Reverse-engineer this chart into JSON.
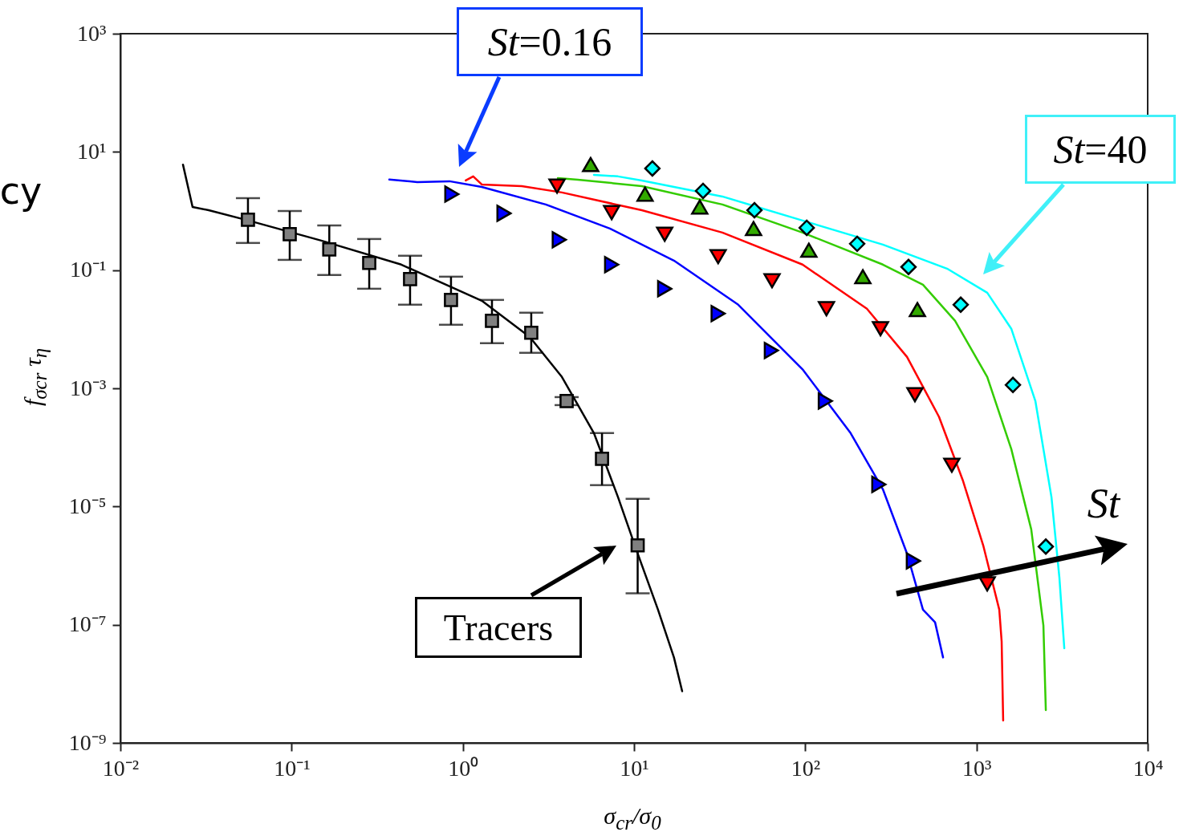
{
  "chart_data": {
    "type": "line",
    "xlabel": "σ$_{cr}$/σ$_{0}$",
    "ylabel": "f$_{σcr}$ τ$_{η}$",
    "log": "xy",
    "xlim": [
      0.01,
      10000
    ],
    "ylim": [
      1e-09,
      1000
    ],
    "xticks": [
      {
        "value": 0.01,
        "label": "10⁻²"
      },
      {
        "value": 0.1,
        "label": "10⁻¹"
      },
      {
        "value": 1,
        "label": "10⁰"
      },
      {
        "value": 10,
        "label": "10¹"
      },
      {
        "value": 100,
        "label": "10²"
      },
      {
        "value": 1000,
        "label": "10³"
      },
      {
        "value": 10000,
        "label": "10⁴"
      }
    ],
    "yticks": [
      {
        "value": 1e-09,
        "label": "10⁻⁹"
      },
      {
        "value": 1e-07,
        "label": "10⁻⁷"
      },
      {
        "value": 1e-05,
        "label": "10⁻⁵"
      },
      {
        "value": 0.001,
        "label": "10⁻³"
      },
      {
        "value": 0.1,
        "label": "10⁻¹"
      },
      {
        "value": 10,
        "label": "10¹"
      },
      {
        "value": 1000,
        "label": "10³"
      }
    ],
    "series": [
      {
        "type": "line",
        "color": "#000000",
        "x": [
          0.0232,
          0.0264,
          0.0328,
          0.056,
          0.149,
          0.437,
          1.29,
          2.46,
          3.79,
          5.83,
          8.06,
          10.5,
          13.8,
          17.1,
          19.1
        ],
        "values": [
          6.1,
          1.17,
          1.03,
          0.69,
          0.316,
          0.124,
          0.0303,
          0.0074,
          0.00156,
          0.000175,
          1.44e-05,
          1.6e-06,
          1.8e-07,
          2.8e-08,
          7.5e-09
        ]
      },
      {
        "type": "line",
        "color": "#0000ff",
        "x": [
          0.372,
          0.542,
          0.836,
          1.29,
          3.05,
          7.23,
          17.1,
          40.6,
          96.4,
          184,
          284,
          393,
          487,
          573,
          638
        ],
        "values": [
          3.4,
          3.09,
          3.19,
          2.56,
          1.29,
          0.505,
          0.145,
          0.026,
          0.0021,
          0.000175,
          1.96e-05,
          1.6e-06,
          1.8e-07,
          1.1e-07,
          2.8e-08
        ]
      },
      {
        "type": "line",
        "color": "#ff0000",
        "x": [
          1.04,
          1.15,
          1.29,
          2.21,
          3.79,
          11.1,
          32.8,
          96.4,
          229,
          393,
          604,
          835,
          1095,
          1359,
          1403,
          1432
        ],
        "values": [
          3.29,
          3.85,
          2.81,
          2.64,
          2.06,
          1.03,
          0.432,
          0.124,
          0.0222,
          0.0034,
          0.00033,
          2.7e-05,
          2.2e-06,
          1.8e-07,
          5.2e-08,
          2.4e-09
        ]
      },
      {
        "type": "line",
        "color": "#33cc00",
        "x": [
          3.59,
          4.7,
          11.1,
          32.8,
          96.4,
          284,
          487,
          750,
          1156,
          1597,
          2089,
          2460,
          2541
        ],
        "values": [
          3.61,
          3.39,
          2.64,
          1.29,
          0.432,
          0.124,
          0.0566,
          0.0139,
          0.00156,
          9.4e-05,
          4.1e-06,
          9.7e-08,
          3.6e-09
        ]
      },
      {
        "type": "line",
        "color": "#00ffff",
        "x": [
          5.83,
          8.06,
          11.1,
          32.8,
          96.4,
          284,
          673,
          1156,
          1597,
          2208,
          2742,
          3050,
          3258
        ],
        "values": [
          4.09,
          3.85,
          3.29,
          1.76,
          0.69,
          0.27,
          0.106,
          0.0414,
          0.0102,
          0.00061,
          1.44e-05,
          6.3e-07,
          4e-08
        ]
      },
      {
        "type": "scatter",
        "marker": "square",
        "color": "#808080",
        "x": [
          0.0556,
          0.0975,
          0.166,
          0.284,
          0.492,
          0.853,
          1.48,
          2.51,
          4.04,
          6.5,
          10.5
        ],
        "values": [
          0.71,
          0.405,
          0.224,
          0.132,
          0.0705,
          0.0313,
          0.0139,
          0.0087,
          0.00061,
          6.4e-05,
          2.2e-06
        ],
        "errors": [
          [
            0.288,
            1.65
          ],
          [
            0.149,
            1.0
          ],
          [
            0.0824,
            0.571
          ],
          [
            0.0484,
            0.336
          ],
          [
            0.026,
            0.175
          ],
          [
            0.0119,
            0.0774
          ],
          [
            0.0058,
            0.0313
          ],
          [
            0.004,
            0.019
          ],
          [
            0.00052,
            0.00071
          ],
          [
            2.3e-05,
            0.000175
          ],
          [
            3.4e-07,
            1.35e-05
          ]
        ]
      },
      {
        "type": "scatter",
        "marker": "triangle-right",
        "color": "#0000ff",
        "x": [
          0.863,
          1.74,
          3.66,
          7.4,
          15.1,
          31.0,
          63.4,
          131,
          269,
          428
        ],
        "values": [
          1.93,
          0.914,
          0.326,
          0.124,
          0.0484,
          0.0184,
          0.00437,
          0.00061,
          2.37e-05,
          1.2e-06
        ]
      },
      {
        "type": "scatter",
        "marker": "triangle-down",
        "color": "#ff0000",
        "x": [
          3.55,
          7.4,
          15.1,
          31.0,
          64,
          133,
          275,
          437,
          718,
          1156
        ],
        "values": [
          2.64,
          0.94,
          0.405,
          0.169,
          0.0662,
          0.0222,
          0.0102,
          0.00078,
          5e-05,
          4.9e-07
        ]
      },
      {
        "type": "scatter",
        "marker": "triangle-up",
        "color": "#33aa00",
        "x": [
          5.58,
          11.6,
          24.2,
          49.9,
          105,
          217,
          452
        ],
        "values": [
          6.1,
          1.93,
          1.17,
          0.505,
          0.217,
          0.0774,
          0.0215
        ]
      },
      {
        "type": "scatter",
        "marker": "diamond",
        "color": "#00ffff",
        "x": [
          12.8,
          25.3,
          50.5,
          102,
          201,
          401,
          809,
          1633,
          2541
        ],
        "values": [
          5.25,
          2.19,
          1.03,
          0.52,
          0.279,
          0.113,
          0.026,
          0.00114,
          2.1e-06
        ]
      }
    ],
    "annotations": [
      "St=0.16",
      "St=40",
      "Tracers",
      "St",
      "cy"
    ]
  }
}
